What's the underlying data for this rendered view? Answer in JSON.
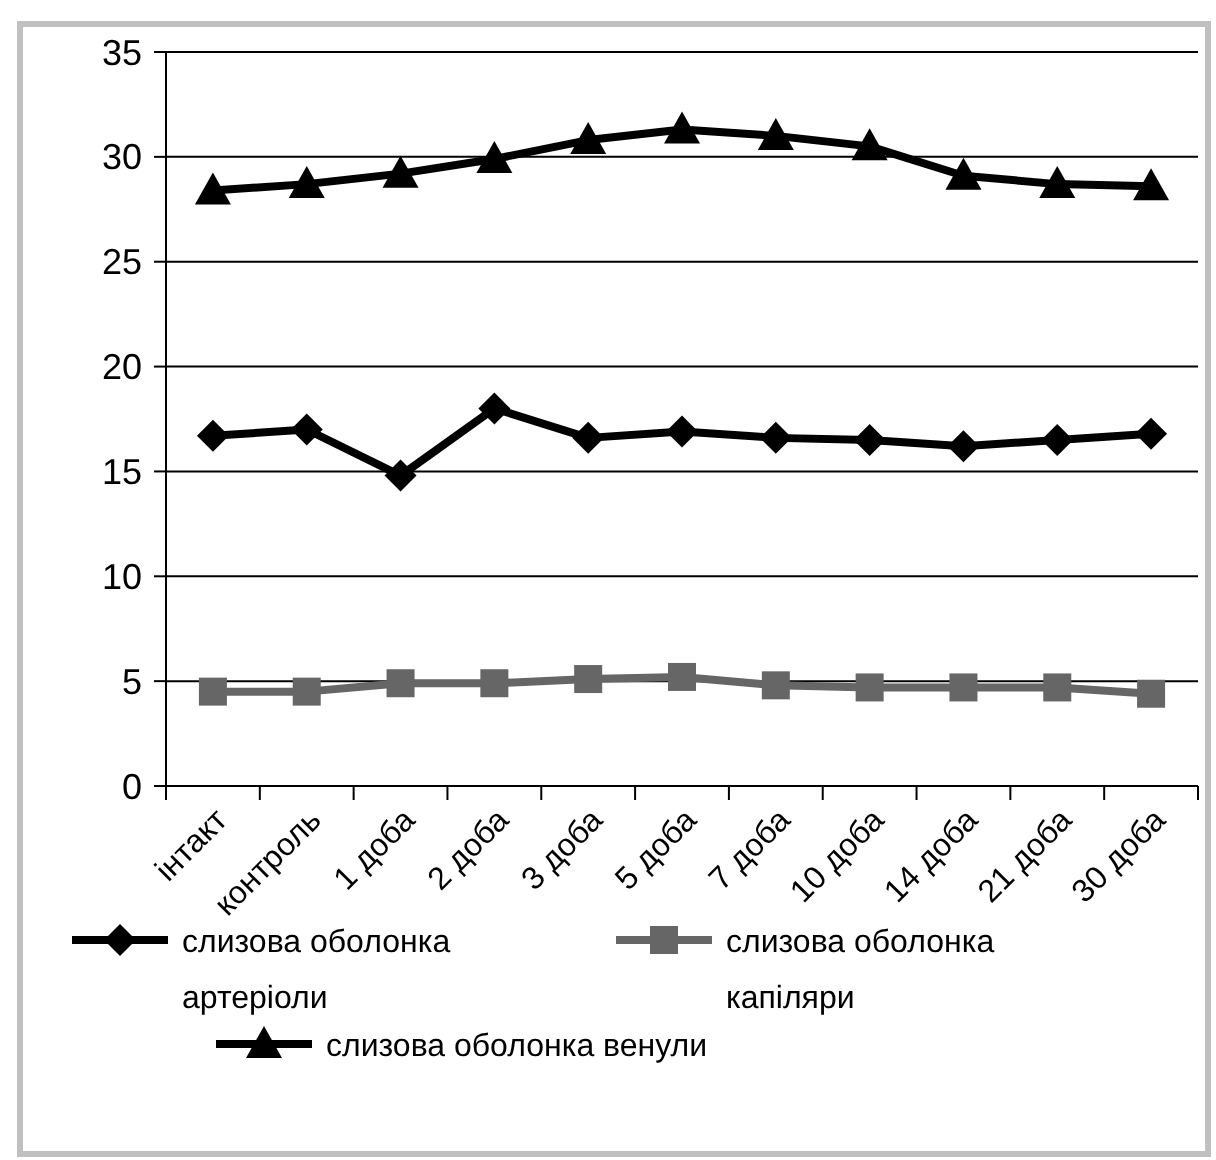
{
  "chart_data": {
    "type": "line",
    "categories": [
      "інтакт",
      "контроль",
      "1 доба",
      "2 доба",
      "3 доба",
      "5 доба",
      "7 доба",
      "10 доба",
      "14 доба",
      "21 доба",
      "30 доба"
    ],
    "series": [
      {
        "name": "слизова оболонка артеріоли",
        "color": "#000000",
        "marker": "diamond",
        "values": [
          16.7,
          17.0,
          14.8,
          18.0,
          16.6,
          16.9,
          16.6,
          16.5,
          16.2,
          16.5,
          16.8
        ]
      },
      {
        "name": "слизова оболонка капіляри",
        "color": "#666666",
        "marker": "square",
        "values": [
          4.5,
          4.5,
          4.9,
          4.9,
          5.1,
          5.2,
          4.8,
          4.7,
          4.7,
          4.7,
          4.4
        ]
      },
      {
        "name": "слизова оболонка венули",
        "color": "#000000",
        "marker": "triangle",
        "values": [
          28.4,
          28.7,
          29.2,
          29.9,
          30.8,
          31.3,
          31.0,
          30.5,
          29.1,
          28.7,
          28.6
        ]
      }
    ],
    "ylim": [
      0,
      35
    ],
    "yticks": [
      0,
      5,
      10,
      15,
      20,
      25,
      30,
      35
    ],
    "grid": "y",
    "legend": "bottom",
    "line_style": "solid"
  }
}
